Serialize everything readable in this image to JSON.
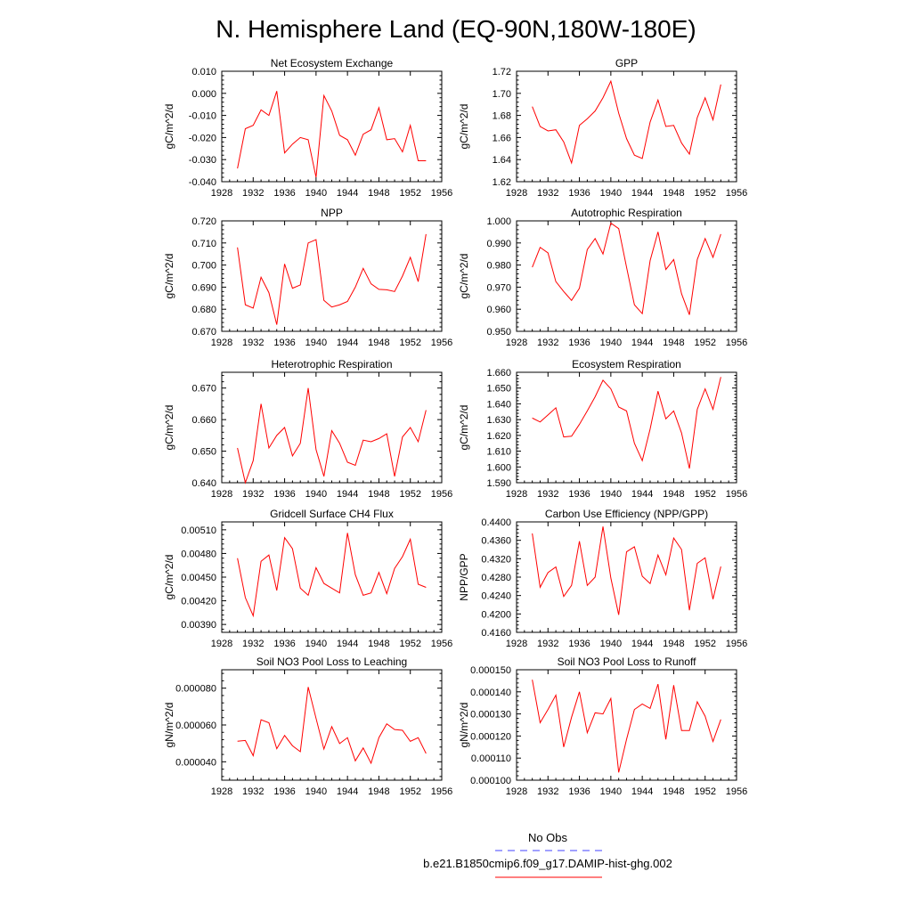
{
  "title": "N. Hemisphere Land (EQ-90N,180W-180E)",
  "legend": {
    "position": "bottom-center",
    "entries": [
      {
        "label": "No Obs",
        "color": "#4040ff",
        "style": "dashed"
      },
      {
        "label": "b.e21.B1850cmip6.f09_g17.DAMIP-hist-ghg.002",
        "color": "#ff0000",
        "style": "solid"
      }
    ]
  },
  "chart_data": [
    {
      "type": "line",
      "title": "Net Ecosystem Exchange",
      "ylabel": "gC/m^2/d",
      "xlim": [
        1928,
        1956
      ],
      "xticks": [
        "1928",
        "1932",
        "1936",
        "1940",
        "1944",
        "1948",
        "1952",
        "1956"
      ],
      "ylim": [
        -0.04,
        0.01
      ],
      "yticks": [
        "-0.040",
        "-0.030",
        "-0.020",
        "-0.010",
        "0.000",
        "0.010"
      ],
      "x": [
        1930,
        1931,
        1932,
        1933,
        1934,
        1935,
        1936,
        1937,
        1938,
        1939,
        1940,
        1941,
        1942,
        1943,
        1944,
        1945,
        1946,
        1947,
        1948,
        1949,
        1950,
        1951,
        1952,
        1953,
        1954
      ],
      "series": [
        {
          "color": "#ff0000",
          "values": [
            -0.034,
            -0.016,
            -0.0145,
            -0.0075,
            -0.01,
            0.001,
            -0.027,
            -0.023,
            -0.02,
            -0.021,
            -0.038,
            -0.001,
            -0.008,
            -0.019,
            -0.021,
            -0.028,
            -0.0185,
            -0.0165,
            -0.0065,
            -0.021,
            -0.0205,
            -0.0265,
            -0.0145,
            -0.0305,
            -0.0305
          ]
        }
      ]
    },
    {
      "type": "line",
      "title": "GPP",
      "ylabel": "gC/m^2/d",
      "xlim": [
        1928,
        1956
      ],
      "xticks": [
        "1928",
        "1932",
        "1936",
        "1940",
        "1944",
        "1948",
        "1952",
        "1956"
      ],
      "ylim": [
        1.62,
        1.72
      ],
      "yticks": [
        "1.62",
        "1.64",
        "1.66",
        "1.68",
        "1.70",
        "1.72"
      ],
      "x": [
        1930,
        1931,
        1932,
        1933,
        1934,
        1935,
        1936,
        1937,
        1938,
        1939,
        1940,
        1941,
        1942,
        1943,
        1944,
        1945,
        1946,
        1947,
        1948,
        1949,
        1950,
        1951,
        1952,
        1953,
        1954
      ],
      "series": [
        {
          "color": "#ff0000",
          "values": [
            1.688,
            1.67,
            1.666,
            1.667,
            1.656,
            1.637,
            1.671,
            1.677,
            1.684,
            1.696,
            1.711,
            1.682,
            1.659,
            1.644,
            1.641,
            1.674,
            1.694,
            1.67,
            1.671,
            1.655,
            1.645,
            1.678,
            1.696,
            1.676,
            1.708
          ]
        }
      ]
    },
    {
      "type": "line",
      "title": "NPP",
      "ylabel": "gC/m^2/d",
      "xlim": [
        1928,
        1956
      ],
      "xticks": [
        "1928",
        "1932",
        "1936",
        "1940",
        "1944",
        "1948",
        "1952",
        "1956"
      ],
      "ylim": [
        0.67,
        0.72
      ],
      "yticks": [
        "0.670",
        "0.680",
        "0.690",
        "0.700",
        "0.710",
        "0.720"
      ],
      "x": [
        1930,
        1931,
        1932,
        1933,
        1934,
        1935,
        1936,
        1937,
        1938,
        1939,
        1940,
        1941,
        1942,
        1943,
        1944,
        1945,
        1946,
        1947,
        1948,
        1949,
        1950,
        1951,
        1952,
        1953,
        1954
      ],
      "series": [
        {
          "color": "#ff0000",
          "values": [
            0.708,
            0.682,
            0.6805,
            0.6945,
            0.6875,
            0.673,
            0.7005,
            0.6895,
            0.691,
            0.71,
            0.7115,
            0.684,
            0.681,
            0.682,
            0.6835,
            0.69,
            0.6985,
            0.6915,
            0.689,
            0.6888,
            0.688,
            0.695,
            0.7035,
            0.6925,
            0.714
          ]
        }
      ]
    },
    {
      "type": "line",
      "title": "Autotrophic Respiration",
      "ylabel": "gC/m^2/d",
      "xlim": [
        1928,
        1956
      ],
      "xticks": [
        "1928",
        "1932",
        "1936",
        "1940",
        "1944",
        "1948",
        "1952",
        "1956"
      ],
      "ylim": [
        0.95,
        1.0
      ],
      "yticks": [
        "0.950",
        "0.960",
        "0.970",
        "0.980",
        "0.990",
        "1.000"
      ],
      "x": [
        1930,
        1931,
        1932,
        1933,
        1934,
        1935,
        1936,
        1937,
        1938,
        1939,
        1940,
        1941,
        1942,
        1943,
        1944,
        1945,
        1946,
        1947,
        1948,
        1949,
        1950,
        1951,
        1952,
        1953,
        1954
      ],
      "series": [
        {
          "color": "#ff0000",
          "values": [
            0.979,
            0.988,
            0.9855,
            0.9725,
            0.968,
            0.964,
            0.9695,
            0.987,
            0.992,
            0.985,
            0.999,
            0.9965,
            0.979,
            0.962,
            0.958,
            0.982,
            0.995,
            0.978,
            0.9825,
            0.967,
            0.9575,
            0.9825,
            0.992,
            0.9835,
            0.994
          ]
        }
      ]
    },
    {
      "type": "line",
      "title": "Heterotrophic Respiration",
      "ylabel": "gC/m^2/d",
      "xlim": [
        1928,
        1956
      ],
      "xticks": [
        "1928",
        "1932",
        "1936",
        "1940",
        "1944",
        "1948",
        "1952",
        "1956"
      ],
      "ylim": [
        0.64,
        0.675
      ],
      "yticks": [
        "0.640",
        "0.650",
        "0.660",
        "0.670"
      ],
      "x": [
        1930,
        1931,
        1932,
        1933,
        1934,
        1935,
        1936,
        1937,
        1938,
        1939,
        1940,
        1941,
        1942,
        1943,
        1944,
        1945,
        1946,
        1947,
        1948,
        1949,
        1950,
        1951,
        1952,
        1953,
        1954
      ],
      "series": [
        {
          "color": "#ff0000",
          "values": [
            0.651,
            0.64,
            0.647,
            0.665,
            0.651,
            0.655,
            0.6575,
            0.6485,
            0.6525,
            0.67,
            0.6505,
            0.642,
            0.6565,
            0.6525,
            0.6465,
            0.6455,
            0.6535,
            0.653,
            0.654,
            0.6555,
            0.642,
            0.6545,
            0.6575,
            0.653,
            0.663
          ]
        }
      ]
    },
    {
      "type": "line",
      "title": "Ecosystem Respiration",
      "ylabel": "gC/m^2/d",
      "xlim": [
        1928,
        1956
      ],
      "xticks": [
        "1928",
        "1932",
        "1936",
        "1940",
        "1944",
        "1948",
        "1952",
        "1956"
      ],
      "ylim": [
        1.59,
        1.66
      ],
      "yticks": [
        "1.590",
        "1.600",
        "1.610",
        "1.620",
        "1.630",
        "1.640",
        "1.650",
        "1.660"
      ],
      "x": [
        1930,
        1931,
        1932,
        1933,
        1934,
        1935,
        1936,
        1937,
        1938,
        1939,
        1940,
        1941,
        1942,
        1943,
        1944,
        1945,
        1946,
        1947,
        1948,
        1949,
        1950,
        1951,
        1952,
        1953,
        1954
      ],
      "series": [
        {
          "color": "#ff0000",
          "values": [
            1.631,
            1.6285,
            1.633,
            1.6375,
            1.619,
            1.6195,
            1.627,
            1.6355,
            1.6445,
            1.655,
            1.6495,
            1.638,
            1.6355,
            1.615,
            1.604,
            1.624,
            1.648,
            1.6305,
            1.6355,
            1.6215,
            1.599,
            1.6365,
            1.6495,
            1.6365,
            1.657
          ]
        }
      ]
    },
    {
      "type": "line",
      "title": "Gridcell Surface CH4 Flux",
      "ylabel": "gC/m^2/d",
      "xlim": [
        1928,
        1956
      ],
      "xticks": [
        "1928",
        "1932",
        "1936",
        "1940",
        "1944",
        "1948",
        "1952",
        "1956"
      ],
      "ylim": [
        0.0038,
        0.0052
      ],
      "yticks": [
        "0.00390",
        "0.00420",
        "0.00450",
        "0.00480",
        "0.00510"
      ],
      "x": [
        1930,
        1931,
        1932,
        1933,
        1934,
        1935,
        1936,
        1937,
        1938,
        1939,
        1940,
        1941,
        1942,
        1943,
        1944,
        1945,
        1946,
        1947,
        1948,
        1949,
        1950,
        1951,
        1952,
        1953,
        1954
      ],
      "series": [
        {
          "color": "#ff0000",
          "values": [
            0.00474,
            0.00424,
            0.00401,
            0.0047,
            0.00478,
            0.00433,
            0.005,
            0.00486,
            0.00436,
            0.00427,
            0.00462,
            0.00442,
            0.00436,
            0.0043,
            0.00506,
            0.00453,
            0.00427,
            0.0043,
            0.00456,
            0.00429,
            0.00461,
            0.00476,
            0.00498,
            0.00441,
            0.00437
          ]
        }
      ]
    },
    {
      "type": "line",
      "title": "Carbon Use Efficiency (NPP/GPP)",
      "ylabel": "NPP/GPP",
      "xlim": [
        1928,
        1956
      ],
      "xticks": [
        "1928",
        "1932",
        "1936",
        "1940",
        "1944",
        "1948",
        "1952",
        "1956"
      ],
      "ylim": [
        0.416,
        0.44
      ],
      "yticks": [
        "0.4160",
        "0.4200",
        "0.4240",
        "0.4280",
        "0.4320",
        "0.4360",
        "0.4400"
      ],
      "x": [
        1930,
        1931,
        1932,
        1933,
        1934,
        1935,
        1936,
        1937,
        1938,
        1939,
        1940,
        1941,
        1942,
        1943,
        1944,
        1945,
        1946,
        1947,
        1948,
        1949,
        1950,
        1951,
        1952,
        1953,
        1954
      ],
      "series": [
        {
          "color": "#ff0000",
          "values": [
            0.4375,
            0.4258,
            0.429,
            0.4302,
            0.4238,
            0.4262,
            0.4358,
            0.4262,
            0.428,
            0.439,
            0.4278,
            0.4198,
            0.4335,
            0.4346,
            0.4282,
            0.4266,
            0.4328,
            0.4285,
            0.4365,
            0.434,
            0.4208,
            0.431,
            0.4322,
            0.4232,
            0.4303
          ]
        }
      ]
    },
    {
      "type": "line",
      "title": "Soil NO3 Pool Loss to Leaching",
      "ylabel": "gN/m^2/d",
      "xlim": [
        1928,
        1956
      ],
      "xticks": [
        "1928",
        "1932",
        "1936",
        "1940",
        "1944",
        "1948",
        "1952",
        "1956"
      ],
      "ylim": [
        3e-05,
        9e-05
      ],
      "yticks": [
        "0.000040",
        "0.000060",
        "0.000080"
      ],
      "x": [
        1930,
        1931,
        1932,
        1933,
        1934,
        1935,
        1936,
        1937,
        1938,
        1939,
        1940,
        1941,
        1942,
        1943,
        1944,
        1945,
        1946,
        1947,
        1948,
        1949,
        1950,
        1951,
        1952,
        1953,
        1954
      ],
      "series": [
        {
          "color": "#ff0000",
          "values": [
            5.12e-05,
            5.16e-05,
            4.33e-05,
            6.28e-05,
            6.12e-05,
            4.71e-05,
            5.43e-05,
            4.87e-05,
            4.55e-05,
            8.06e-05,
            6.36e-05,
            4.69e-05,
            5.91e-05,
            4.99e-05,
            5.31e-05,
            4.05e-05,
            4.75e-05,
            3.92e-05,
            5.31e-05,
            6.06e-05,
            5.75e-05,
            5.71e-05,
            5.11e-05,
            5.31e-05,
            4.45e-05
          ]
        }
      ]
    },
    {
      "type": "line",
      "title": "Soil NO3 Pool Loss to Runoff",
      "ylabel": "gN/m^2/d",
      "xlim": [
        1928,
        1956
      ],
      "xticks": [
        "1928",
        "1932",
        "1936",
        "1940",
        "1944",
        "1948",
        "1952",
        "1956"
      ],
      "ylim": [
        0.0001,
        0.00015
      ],
      "yticks": [
        "0.000100",
        "0.000110",
        "0.000120",
        "0.000130",
        "0.000140",
        "0.000150"
      ],
      "x": [
        1930,
        1931,
        1932,
        1933,
        1934,
        1935,
        1936,
        1937,
        1938,
        1939,
        1940,
        1941,
        1942,
        1943,
        1944,
        1945,
        1946,
        1947,
        1948,
        1949,
        1950,
        1951,
        1952,
        1953,
        1954
      ],
      "series": [
        {
          "color": "#ff0000",
          "values": [
            0.0001455,
            0.000126,
            0.000132,
            0.0001385,
            0.000115,
            0.0001285,
            0.00014,
            0.0001215,
            0.0001305,
            0.00013,
            0.000137,
            0.0001035,
            0.0001185,
            0.000132,
            0.0001345,
            0.0001325,
            0.0001435,
            0.0001185,
            0.000143,
            0.0001225,
            0.0001225,
            0.0001355,
            0.000129,
            0.0001175,
            0.0001275
          ]
        }
      ]
    }
  ]
}
